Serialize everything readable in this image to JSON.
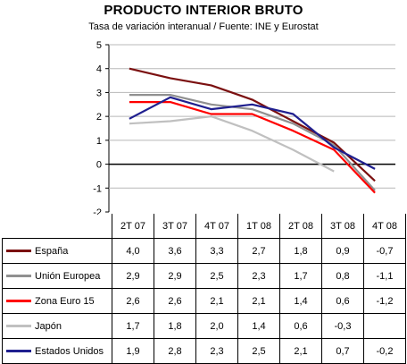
{
  "chart_data": {
    "type": "line",
    "title": "PRODUCTO INTERIOR BRUTO",
    "subtitle": "Tasa de variación interanual / Fuente: INE y Eurostat",
    "categories": [
      "2T 07",
      "3T 07",
      "4T 07",
      "1T 08",
      "2T 08",
      "3T 08",
      "4T 08"
    ],
    "ylim": [
      -2,
      5
    ],
    "yticks": [
      "5",
      "4",
      "3",
      "2",
      "1",
      "0",
      "-1",
      "-2"
    ],
    "series": [
      {
        "name": "España",
        "color": "#7b1010",
        "values": [
          4.0,
          3.6,
          3.3,
          2.7,
          1.8,
          0.9,
          -0.7
        ],
        "labels": [
          "4,0",
          "3,6",
          "3,3",
          "2,7",
          "1,8",
          "0,9",
          "-0,7"
        ]
      },
      {
        "name": "Unión Europea",
        "color": "#909090",
        "values": [
          2.9,
          2.9,
          2.5,
          2.3,
          1.7,
          0.8,
          -1.1
        ],
        "labels": [
          "2,9",
          "2,9",
          "2,5",
          "2,3",
          "1,7",
          "0,8",
          "-1,1"
        ]
      },
      {
        "name": "Zona Euro 15",
        "color": "#ff0000",
        "values": [
          2.6,
          2.6,
          2.1,
          2.1,
          1.4,
          0.6,
          -1.2
        ],
        "labels": [
          "2,6",
          "2,6",
          "2,1",
          "2,1",
          "1,4",
          "0,6",
          "-1,2"
        ]
      },
      {
        "name": "Japón",
        "color": "#c0c0c0",
        "values": [
          1.7,
          1.8,
          2.0,
          1.4,
          0.6,
          -0.3,
          null
        ],
        "labels": [
          "1,7",
          "1,8",
          "2,0",
          "1,4",
          "0,6",
          "-0,3",
          ""
        ]
      },
      {
        "name": "Estados Unidos",
        "color": "#1f1f8f",
        "values": [
          1.9,
          2.8,
          2.3,
          2.5,
          2.1,
          0.7,
          -0.2
        ],
        "labels": [
          "1,9",
          "2,8",
          "2,3",
          "2,5",
          "2,1",
          "0,7",
          "-0,2"
        ]
      }
    ],
    "grid": true,
    "legend": "table-rows"
  }
}
